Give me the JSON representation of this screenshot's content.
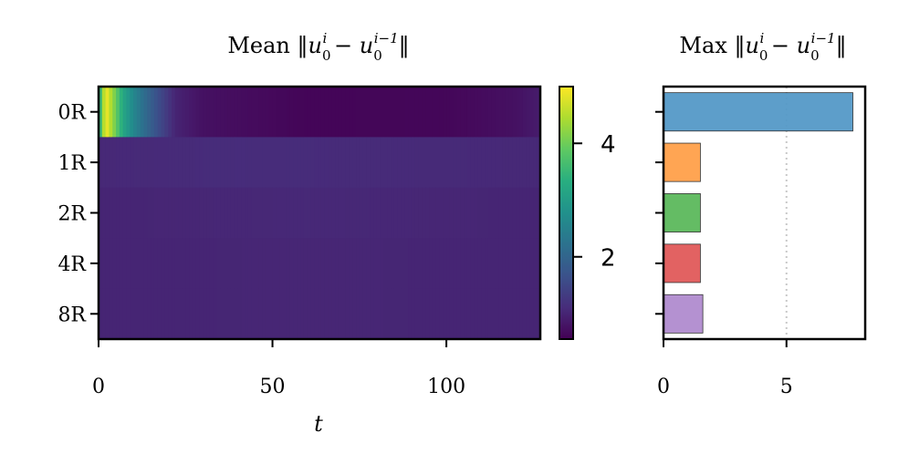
{
  "chart_data": [
    {
      "type": "heatmap",
      "title": "Mean ‖u₀ⁱ − u₀ⁱ⁻¹‖",
      "title_parts": {
        "prefix": "Mean ",
        "norm": "‖",
        "base": "u",
        "sub": "0",
        "sup_a": "i",
        "minus": " − ",
        "sup_b": "i−1"
      },
      "xlabel": "t",
      "ylabel": "",
      "rows": [
        "0R",
        "1R",
        "2R",
        "4R",
        "8R"
      ],
      "x_range": [
        0,
        127
      ],
      "xticks": [
        "0",
        "50",
        "100"
      ],
      "xtick_values": [
        0,
        50,
        100
      ],
      "colormap": "viridis",
      "color_range": [
        0.55,
        5.0
      ],
      "colorbar_ticks": [
        "2",
        "4"
      ],
      "colorbar_tick_values": [
        2,
        4
      ],
      "series": [
        {
          "row": "0R",
          "profile": [
            {
              "t": 0,
              "value": 3.0
            },
            {
              "t": 2,
              "value": 5.0
            },
            {
              "t": 4,
              "value": 4.3
            },
            {
              "t": 7,
              "value": 3.2
            },
            {
              "t": 10,
              "value": 2.6
            },
            {
              "t": 14,
              "value": 2.0
            },
            {
              "t": 18,
              "value": 1.5
            },
            {
              "t": 22,
              "value": 1.0
            },
            {
              "t": 30,
              "value": 0.75
            },
            {
              "t": 60,
              "value": 0.6
            },
            {
              "t": 100,
              "value": 0.62
            },
            {
              "t": 120,
              "value": 0.75
            },
            {
              "t": 127,
              "value": 0.9
            }
          ]
        },
        {
          "row": "1R",
          "profile": [
            {
              "t": 0,
              "value": 1.05
            },
            {
              "t": 40,
              "value": 1.1
            },
            {
              "t": 127,
              "value": 1.05
            }
          ]
        },
        {
          "row": "2R",
          "profile": [
            {
              "t": 0,
              "value": 1.0
            },
            {
              "t": 60,
              "value": 1.05
            },
            {
              "t": 127,
              "value": 1.0
            }
          ]
        },
        {
          "row": "4R",
          "profile": [
            {
              "t": 0,
              "value": 1.0
            },
            {
              "t": 60,
              "value": 1.02
            },
            {
              "t": 127,
              "value": 1.0
            }
          ]
        },
        {
          "row": "8R",
          "profile": [
            {
              "t": 0,
              "value": 1.0
            },
            {
              "t": 60,
              "value": 1.02
            },
            {
              "t": 127,
              "value": 1.0
            }
          ]
        }
      ]
    },
    {
      "type": "bar",
      "orientation": "horizontal",
      "title": "Max ‖u₀ⁱ − u₀ⁱ⁻¹‖",
      "title_parts": {
        "prefix": "Max ",
        "norm": "‖",
        "base": "u",
        "sub": "0",
        "sup_a": "i",
        "minus": " − ",
        "sup_b": "i−1"
      },
      "categories": [
        "0R",
        "1R",
        "2R",
        "4R",
        "8R"
      ],
      "values": [
        7.7,
        1.5,
        1.5,
        1.5,
        1.6
      ],
      "colors": [
        "#5499c7",
        "#ffa04a",
        "#5cb85c",
        "#e05a5a",
        "#b08bcf"
      ],
      "xlim": [
        0,
        8.2
      ],
      "xticks": [
        "0",
        "5"
      ],
      "xtick_values": [
        0,
        5
      ],
      "reference_line": {
        "x": 5,
        "style": "dotted"
      }
    }
  ]
}
